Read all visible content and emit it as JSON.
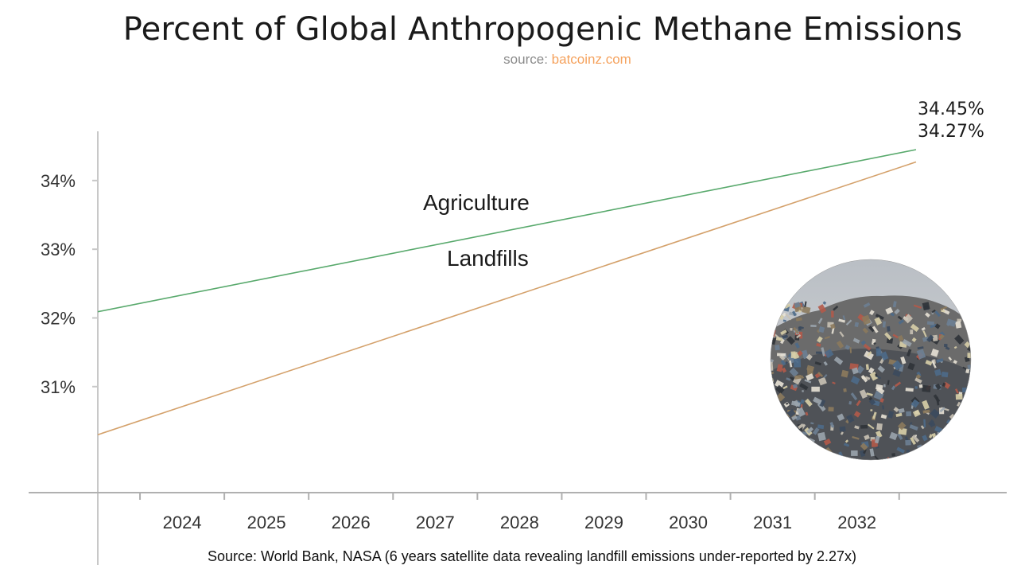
{
  "chart_data": {
    "type": "line",
    "title": "Percent of Global Anthropogenic Methane Emissions",
    "subtitle_prefix": "source: ",
    "subtitle_link": "batcoinz.com",
    "footnote": "Source: World Bank, NASA (6 years satellite data revealing landfill emissions under-reported by 2.27x)",
    "xlabel": "",
    "ylabel": "",
    "x_ticks": [
      "2024",
      "2025",
      "2026",
      "2027",
      "2028",
      "2029",
      "2030",
      "2031",
      "2032"
    ],
    "y_ticks": [
      {
        "value": 31,
        "label": "31%"
      },
      {
        "value": 32,
        "label": "32%"
      },
      {
        "value": 33,
        "label": "33%"
      },
      {
        "value": 34,
        "label": "34%"
      }
    ],
    "xlim": [
      2023,
      2033.2
    ],
    "ylim": [
      29.7,
      35.4
    ],
    "grid": false,
    "legend": "none",
    "series": [
      {
        "name": "Agriculture",
        "color": "#58a96c",
        "x": [
          2023,
          2032.7
        ],
        "y": [
          32.09,
          34.45
        ],
        "end_label": "34.45%"
      },
      {
        "name": "Landfills",
        "color": "#d4a16b",
        "x": [
          2023,
          2032.7
        ],
        "y": [
          30.3,
          34.27
        ],
        "end_label": "34.27%"
      }
    ]
  },
  "inset_image": {
    "description": "landfill-photo"
  }
}
